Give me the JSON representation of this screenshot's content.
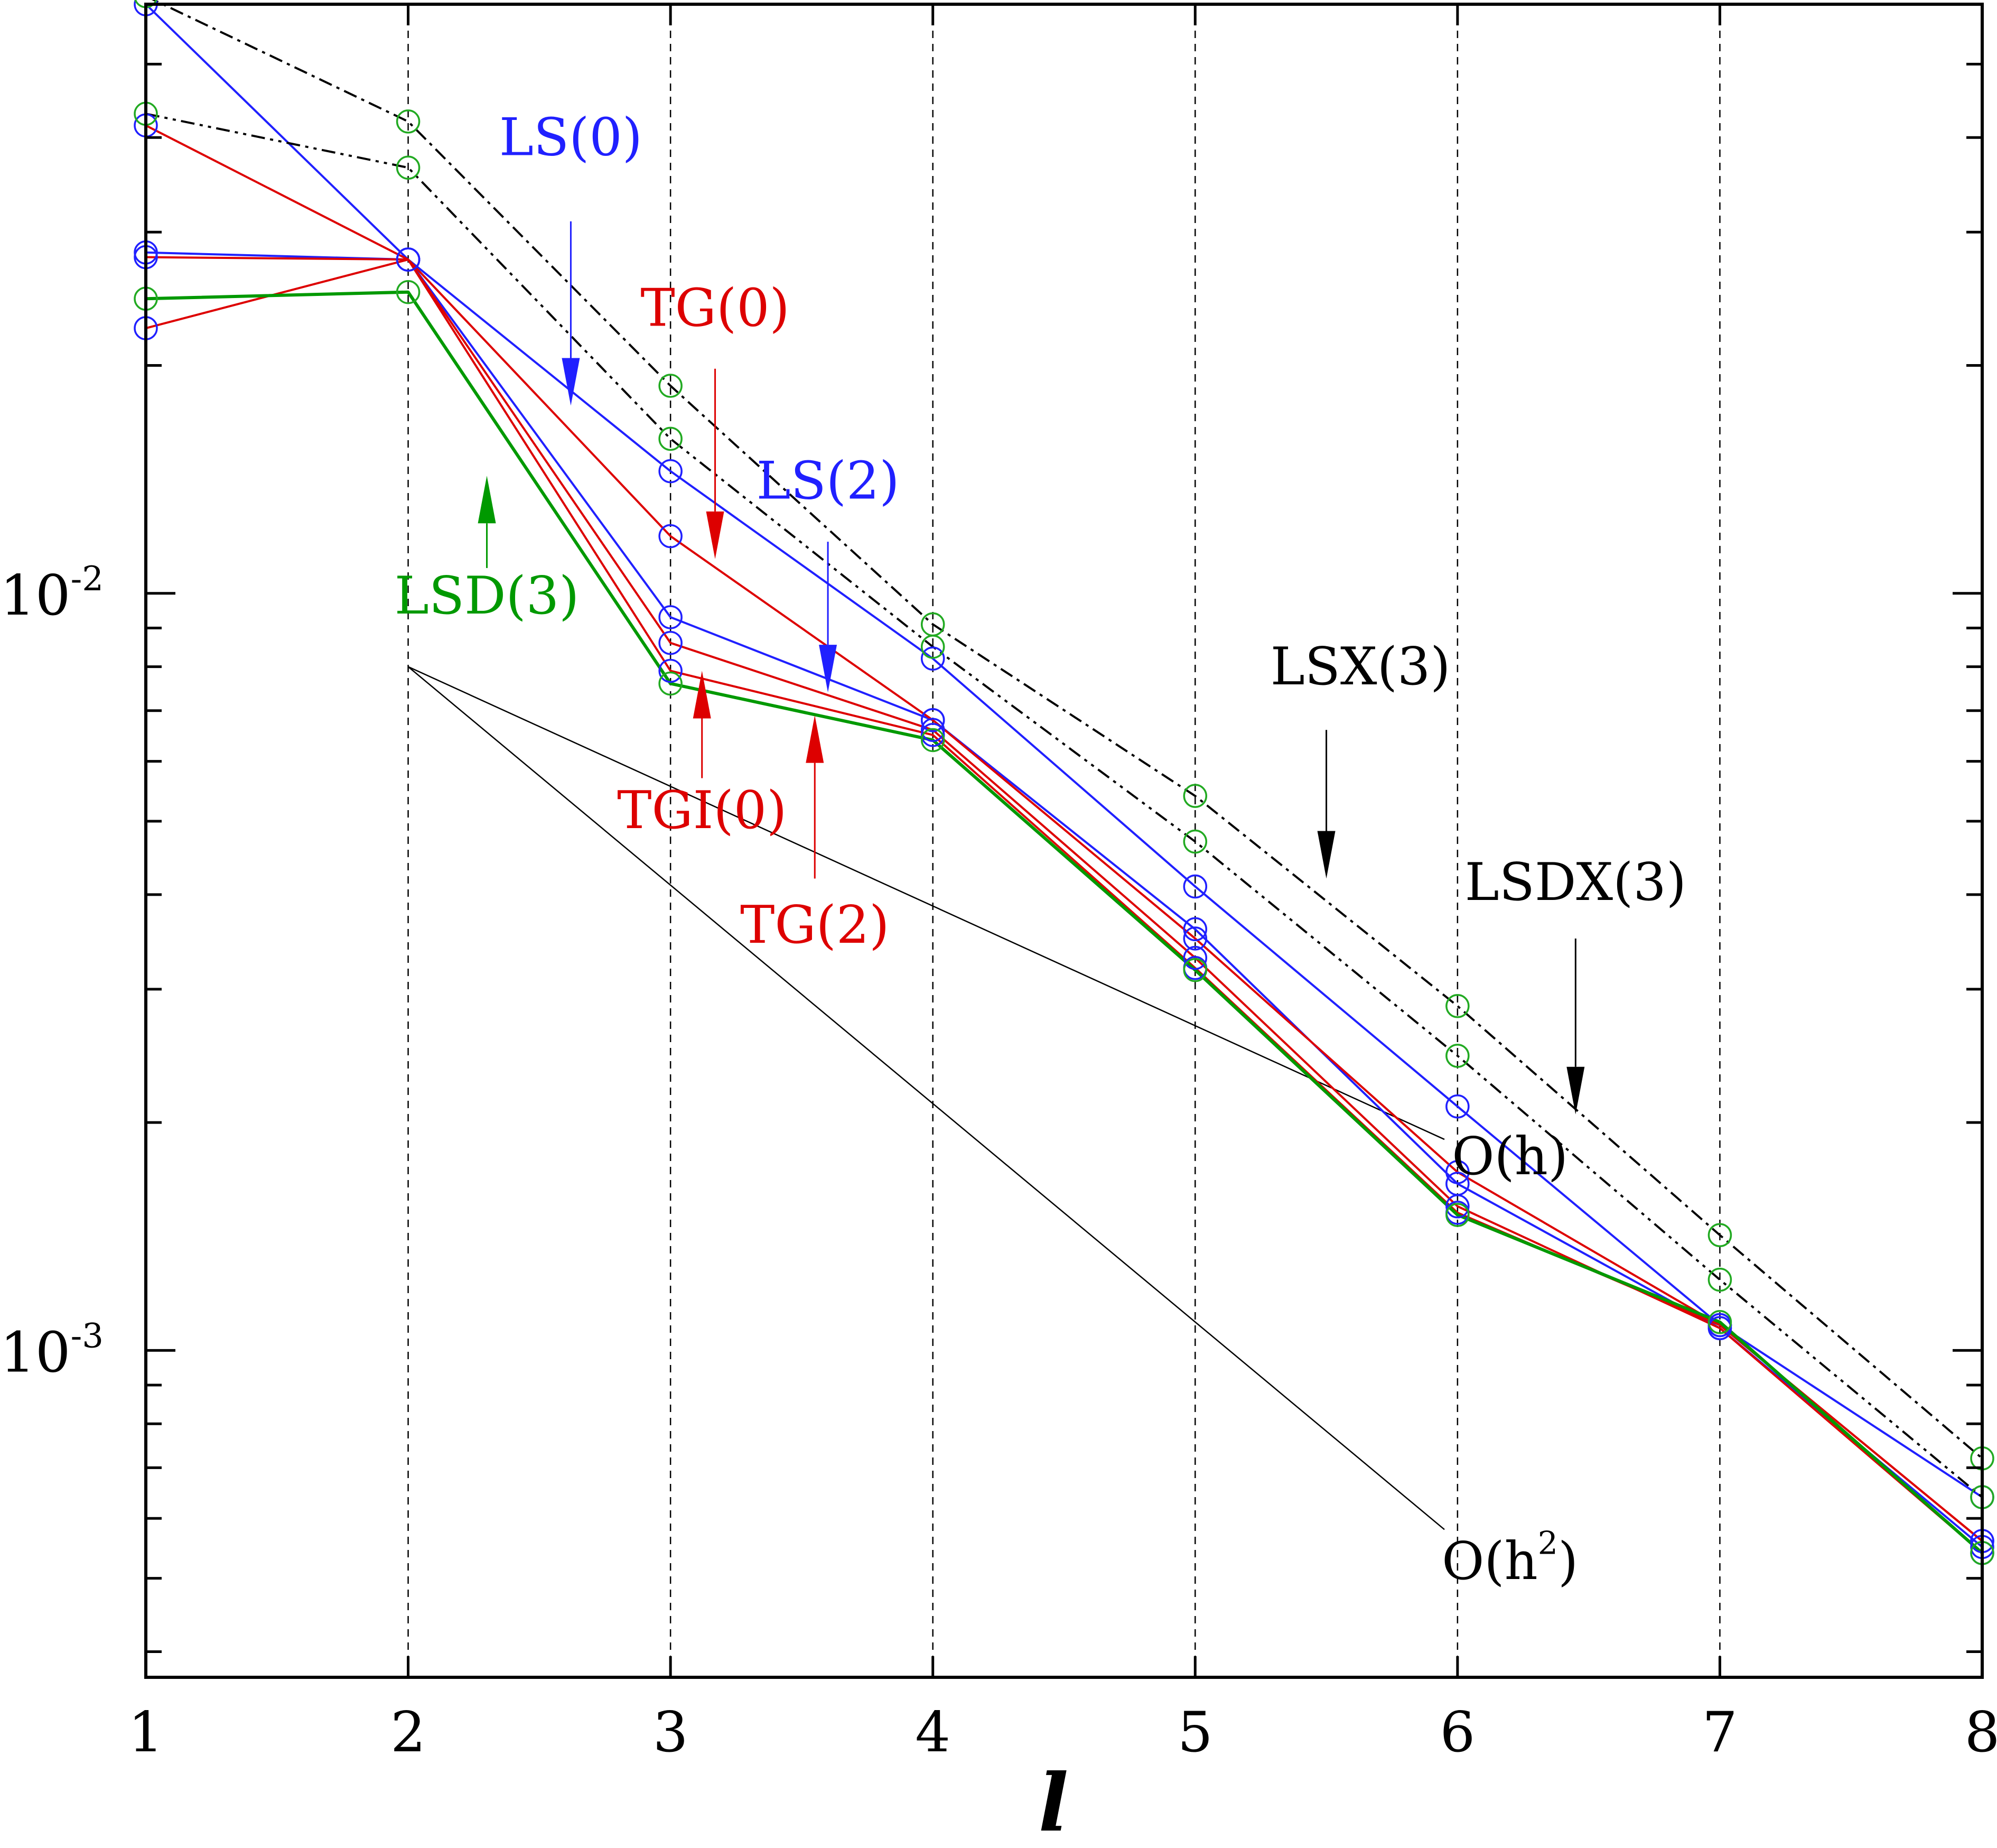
{
  "chart_data": {
    "type": "line",
    "yscale": "log",
    "xlabel": "l",
    "ylabel": "",
    "xlim": [
      1,
      8
    ],
    "ylim": [
      0.00037,
      0.06
    ],
    "x_ticks": [
      "1",
      "2",
      "3",
      "4",
      "5",
      "6",
      "7",
      "8"
    ],
    "y_ticks": [
      {
        "value": 0.01,
        "base": "10",
        "exp": "-2"
      },
      {
        "value": 0.001,
        "base": "10",
        "exp": "-3"
      }
    ],
    "colors": {
      "LS": "#2020ff",
      "TG": "#dd0000",
      "LSD": "#009900",
      "black": "#000000",
      "marker": "#22aa22"
    },
    "series": [
      {
        "name": "LS(0)",
        "color": "#2020ff",
        "width": 4,
        "dash": "",
        "marker": "#2020ff",
        "x": [
          1,
          2,
          3,
          4,
          5,
          6,
          7,
          8
        ],
        "y": [
          0.06,
          0.0276,
          0.0145,
          0.0082,
          0.0041,
          0.0021,
          0.00108,
          0.00064
        ]
      },
      {
        "name": "LS(2)",
        "color": "#2020ff",
        "width": 4,
        "dash": "",
        "marker": "#2020ff",
        "x": [
          1,
          2,
          3,
          4,
          5,
          6,
          7,
          8
        ],
        "y": [
          0.0282,
          0.0276,
          0.0093,
          0.0068,
          0.0036,
          0.00166,
          0.00107,
          0.00055
        ]
      },
      {
        "name": "TG(0)",
        "color": "#dd0000",
        "width": 4,
        "dash": "",
        "marker": "#2020ff",
        "x": [
          1,
          2,
          3,
          4,
          5,
          6,
          7,
          8
        ],
        "y": [
          0.0415,
          0.0276,
          0.0119,
          0.0068,
          0.0035,
          0.00172,
          0.00108,
          0.00056
        ]
      },
      {
        "name": "TGI(0)",
        "color": "#dd0000",
        "width": 4,
        "dash": "",
        "marker": "#2020ff",
        "x": [
          1,
          2,
          3,
          4,
          5,
          6,
          7,
          8
        ],
        "y": [
          0.0224,
          0.0276,
          0.0086,
          0.0066,
          0.0033,
          0.00155,
          0.00107,
          0.00054
        ]
      },
      {
        "name": "TG(2)",
        "color": "#dd0000",
        "width": 4,
        "dash": "",
        "marker": "#2020ff",
        "x": [
          1,
          2,
          3,
          4,
          5,
          6,
          7,
          8
        ],
        "y": [
          0.0278,
          0.0276,
          0.0079,
          0.0065,
          0.0032,
          0.00152,
          0.00108,
          0.00056
        ]
      },
      {
        "name": "LSD(3)",
        "color": "#009900",
        "width": 6,
        "dash": "",
        "marker": "#22aa22",
        "x": [
          1,
          2,
          3,
          4,
          5,
          6,
          7,
          8
        ],
        "y": [
          0.0245,
          0.025,
          0.0076,
          0.0064,
          0.00318,
          0.00151,
          0.00109,
          0.00054
        ]
      },
      {
        "name": "LSX(3)",
        "color": "#000000",
        "width": 4,
        "dash": "26 10 6 10",
        "marker": "#22aa22",
        "x": [
          1,
          2,
          3,
          4,
          5,
          6,
          7,
          8
        ],
        "y": [
          0.0615,
          0.042,
          0.0188,
          0.0091,
          0.0054,
          0.00285,
          0.00142,
          0.00072
        ]
      },
      {
        "name": "LSDX(3)",
        "color": "#000000",
        "width": 4,
        "dash": "26 10 6 10 6 10",
        "marker": "#22aa22",
        "x": [
          1,
          2,
          3,
          4,
          5,
          6,
          7,
          8
        ],
        "y": [
          0.043,
          0.0365,
          0.016,
          0.0085,
          0.0047,
          0.00245,
          0.00124,
          0.00064
        ]
      }
    ],
    "reference_lines": [
      {
        "name": "O(h)",
        "x": [
          2,
          5.95
        ],
        "y": [
          0.008,
          0.0019
        ]
      },
      {
        "name": "O(h2)",
        "x": [
          2,
          5.95
        ],
        "y": [
          0.008,
          0.00058
        ]
      }
    ],
    "annotations": [
      {
        "name": "LS(0)",
        "text": "LS(0)",
        "color": "#2020ff",
        "tx": 2.62,
        "ty": 0.0395,
        "ax": 2.62,
        "ay0": 0.031,
        "ay1": 0.0177,
        "head": "down"
      },
      {
        "name": "TG(0)",
        "text": "TG(0)",
        "color": "#dd0000",
        "tx": 3.17,
        "ty": 0.0235,
        "ax": 3.17,
        "ay0": 0.0198,
        "ay1": 0.0111,
        "head": "down"
      },
      {
        "name": "LS(2)",
        "text": "LS(2)",
        "color": "#2020ff",
        "tx": 3.6,
        "ty": 0.0139,
        "ax": 3.6,
        "ay0": 0.0117,
        "ay1": 0.0074,
        "head": "down"
      },
      {
        "name": "LSD(3)",
        "text": "LSD(3)",
        "color": "#009900",
        "tx": 2.3,
        "ty": 0.0098,
        "ax": 2.3,
        "ay0": 0.0108,
        "ay1": 0.0143,
        "head": "up"
      },
      {
        "name": "TGI(0)",
        "text": "TGI(0)",
        "color": "#dd0000",
        "tx": 3.12,
        "ty": 0.0051,
        "ax": 3.12,
        "ay0": 0.0057,
        "ay1": 0.0079,
        "head": "up"
      },
      {
        "name": "TG(2)",
        "text": "TG(2)",
        "color": "#dd0000",
        "tx": 3.55,
        "ty": 0.0036,
        "ax": 3.55,
        "ay0": 0.0042,
        "ay1": 0.0069,
        "head": "up"
      },
      {
        "name": "LSX(3)",
        "text": "LSX(3)",
        "color": "#000000",
        "tx": 5.63,
        "ty": 0.0079,
        "ax": 5.5,
        "ay0": 0.0066,
        "ay1": 0.0042,
        "head": "down"
      },
      {
        "name": "LSDX(3)",
        "text": "LSDX(3)",
        "color": "#000000",
        "tx": 6.45,
        "ty": 0.0041,
        "ax": 6.45,
        "ay0": 0.0035,
        "ay1": 0.00205,
        "head": "down"
      },
      {
        "name": "O(h)",
        "text": "O(h)",
        "color": "#000000",
        "tx": 6.2,
        "ty": 0.00178
      },
      {
        "name": "O(h2)",
        "text": "O(h",
        "sup": "2",
        "tail": ")",
        "color": "#000000",
        "tx": 6.2,
        "ty": 0.00052
      }
    ]
  }
}
